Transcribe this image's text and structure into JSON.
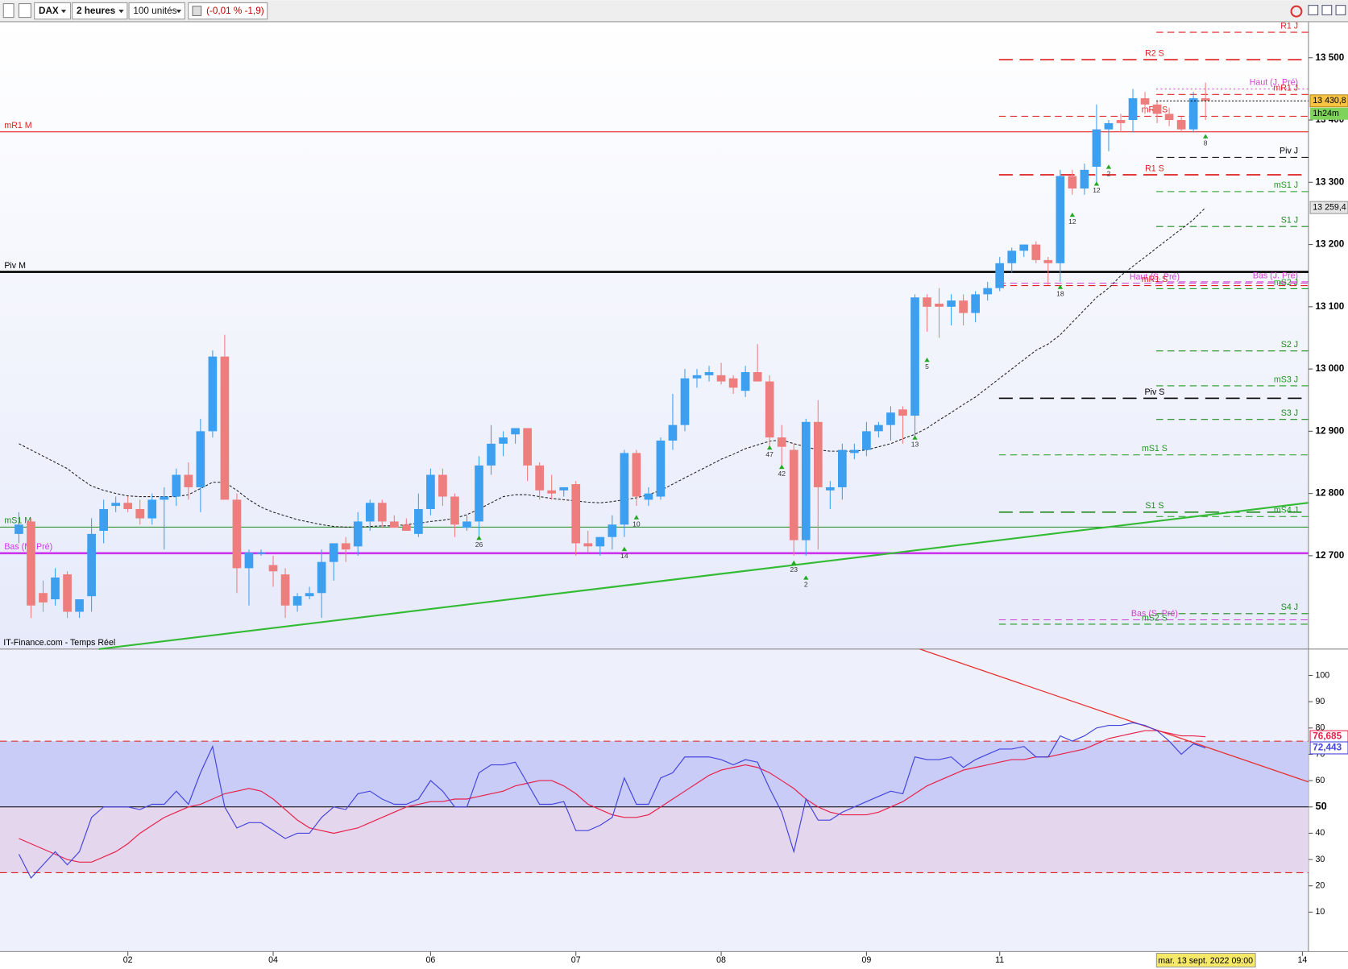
{
  "toolbar": {
    "symbol": "DAX",
    "interval": "2 heures",
    "units": "100 unités",
    "change": "(-0,01 % -1,9)"
  },
  "chart_data": [
    {
      "type": "candlestick",
      "source": "IT-Finance.com - Temps Réel",
      "xlim": [
        -1.56,
        106.5
      ],
      "xticks": [
        {
          "value": 9,
          "label": "02"
        },
        {
          "value": 21,
          "label": "04"
        },
        {
          "value": 34,
          "label": "06"
        },
        {
          "value": 46,
          "label": "07"
        },
        {
          "value": 58,
          "label": "08"
        },
        {
          "value": 70,
          "label": "09"
        },
        {
          "value": 81,
          "label": "11"
        },
        {
          "value": 106,
          "label": "14"
        }
      ],
      "cursor": {
        "value": 98,
        "label": "mar. 13 sept. 2022 09:00"
      },
      "ylim": [
        12550,
        13558
      ],
      "yticks": [
        {
          "value": 12700,
          "label": "12 700"
        },
        {
          "value": 12800,
          "label": "12 800"
        },
        {
          "value": 12900,
          "label": "12 900"
        },
        {
          "value": 13000,
          "label": "13 000"
        },
        {
          "value": 13100,
          "label": "13 100"
        },
        {
          "value": 13200,
          "label": "13 200"
        },
        {
          "value": 13300,
          "label": "13 300"
        },
        {
          "value": 13400,
          "label": "13 400"
        },
        {
          "value": 13500,
          "label": "13 500"
        }
      ],
      "up_color": "#3d9ff0",
      "down_color": "#ee7d7d",
      "open": [
        12735,
        12755,
        12640,
        12630,
        12670,
        12610,
        12635,
        12740,
        12780,
        12785,
        12775,
        12760,
        12790,
        12795,
        12830,
        12810,
        12900,
        13020,
        12790,
        12680,
        12705,
        12685,
        12670,
        12620,
        12635,
        12640,
        12690,
        12720,
        12715,
        12755,
        12785,
        12755,
        12750,
        12735,
        12775,
        12830,
        12795,
        12745,
        12755,
        12845,
        12880,
        12895,
        12905,
        12845,
        12805,
        12805,
        12815,
        12720,
        12715,
        12730,
        12750,
        12865,
        12790,
        12795,
        12885,
        12910,
        12985,
        12990,
        12990,
        12985,
        12965,
        12995,
        12980,
        12890,
        12870,
        12725,
        12915,
        12805,
        12810,
        12865,
        12870,
        12900,
        12910,
        12935,
        12925,
        13115,
        13105,
        13100,
        13110,
        13090,
        13120,
        13130,
        13170,
        13190,
        13200,
        13175,
        13170,
        13310,
        13290,
        13325,
        13385,
        13400,
        13400,
        13435,
        13425,
        13410,
        13400,
        13385,
        13435
      ],
      "high": [
        12770,
        12760,
        12660,
        12680,
        12675,
        12630,
        12760,
        12790,
        12795,
        12795,
        12790,
        12800,
        12810,
        12840,
        12850,
        12920,
        13030,
        13055,
        12800,
        12710,
        12710,
        12700,
        12680,
        12640,
        12650,
        12710,
        12720,
        12730,
        12770,
        12790,
        12790,
        12765,
        12760,
        12800,
        12840,
        12840,
        12800,
        12765,
        12860,
        12910,
        12900,
        12905,
        12905,
        12850,
        12830,
        12810,
        12820,
        12740,
        12730,
        12765,
        12870,
        12870,
        12810,
        12890,
        12960,
        13000,
        13000,
        13005,
        13010,
        12990,
        13005,
        13040,
        12990,
        12910,
        12880,
        12920,
        12950,
        12820,
        12880,
        12880,
        12915,
        12915,
        12940,
        12940,
        13120,
        13120,
        13130,
        13120,
        13120,
        13125,
        13140,
        13180,
        13195,
        13200,
        13205,
        13180,
        13320,
        13320,
        13330,
        13425,
        13400,
        13410,
        13450,
        13445,
        13430,
        13420,
        13405,
        13445,
        13460
      ],
      "low": [
        12720,
        12600,
        12610,
        12620,
        12600,
        12600,
        12610,
        12720,
        12770,
        12770,
        12750,
        12750,
        12710,
        12780,
        12790,
        12770,
        12890,
        12790,
        12640,
        12620,
        12700,
        12650,
        12600,
        12610,
        12630,
        12600,
        12660,
        12690,
        12700,
        12740,
        12745,
        12745,
        12740,
        12730,
        12765,
        12780,
        12730,
        12740,
        12730,
        12830,
        12860,
        12880,
        12820,
        12790,
        12790,
        12795,
        12700,
        12705,
        12700,
        12710,
        12730,
        12780,
        12780,
        12790,
        12870,
        12900,
        12970,
        12980,
        12975,
        12960,
        12955,
        12980,
        12870,
        12840,
        12700,
        12700,
        12710,
        12775,
        12790,
        12855,
        12860,
        12890,
        12885,
        12880,
        12890,
        13060,
        13050,
        13070,
        13070,
        13075,
        13110,
        13125,
        13155,
        13180,
        13170,
        13135,
        13140,
        13280,
        13280,
        13300,
        13350,
        13380,
        13380,
        13410,
        13395,
        13390,
        13380,
        13380,
        13400
      ],
      "close": [
        12750,
        12620,
        12625,
        12665,
        12610,
        12630,
        12735,
        12775,
        12785,
        12775,
        12760,
        12790,
        12795,
        12830,
        12810,
        12900,
        13020,
        12790,
        12680,
        12705,
        12705,
        12675,
        12620,
        12635,
        12640,
        12690,
        12720,
        12710,
        12755,
        12785,
        12755,
        12745,
        12740,
        12775,
        12830,
        12795,
        12750,
        12755,
        12845,
        12880,
        12890,
        12905,
        12845,
        12805,
        12800,
        12810,
        12720,
        12715,
        12730,
        12750,
        12865,
        12795,
        12800,
        12885,
        12910,
        12985,
        12990,
        12995,
        12980,
        12970,
        12995,
        12980,
        12890,
        12875,
        12725,
        12915,
        12810,
        12810,
        12870,
        12870,
        12900,
        12910,
        12930,
        12925,
        13115,
        13100,
        13100,
        13110,
        13090,
        13120,
        13130,
        13170,
        13190,
        13200,
        13175,
        13170,
        13310,
        13290,
        13320,
        13385,
        13395,
        13395,
        13435,
        13425,
        13410,
        13400,
        13385,
        13435,
        13430.8
      ],
      "last_label": "13 430,8",
      "countdown": "1h24m",
      "ma": {
        "color": "#222222",
        "last_label": "13 259,4",
        "values": [
          12880,
          12870,
          12860,
          12850,
          12840,
          12825,
          12812,
          12805,
          12800,
          12796,
          12795,
          12795,
          12795,
          12795,
          12798,
          12808,
          12818,
          12818,
          12805,
          12790,
          12778,
          12770,
          12764,
          12758,
          12754,
          12750,
          12747,
          12746,
          12746,
          12747,
          12748,
          12748,
          12750,
          12752,
          12755,
          12757,
          12760,
          12766,
          12775,
          12785,
          12795,
          12798,
          12798,
          12795,
          12792,
          12790,
          12788,
          12786,
          12785,
          12787,
          12790,
          12793,
          12798,
          12805,
          12815,
          12825,
          12835,
          12845,
          12855,
          12863,
          12872,
          12878,
          12884,
          12886,
          12880,
          12875,
          12870,
          12868,
          12868,
          12868,
          12870,
          12875,
          12880,
          12888,
          12895,
          12905,
          12918,
          12930,
          12943,
          12955,
          12970,
          12985,
          13000,
          13015,
          13030,
          13040,
          13055,
          13075,
          13095,
          13115,
          13130,
          13150,
          13165,
          13180,
          13195,
          13210,
          13225,
          13240,
          13259.4
        ]
      },
      "levels": [
        {
          "name": "R1 J",
          "value": 13541,
          "color": "#e02020",
          "style": "dashed"
        },
        {
          "name": "R2 S",
          "value": 13497,
          "color": "#e02020",
          "style": "longdash"
        },
        {
          "name": "Haut (J. Pré)",
          "value": 13450,
          "color": "#d040d0",
          "style": "dotted"
        },
        {
          "name": "mR1 J",
          "value": 13441,
          "color": "#e02020",
          "style": "dashed"
        },
        {
          "name": "mR2 S",
          "value": 13406,
          "color": "#e02020",
          "style": "dashed"
        },
        {
          "name": "mR1 M",
          "value": 13381,
          "color": "#e02020",
          "style": "solid"
        },
        {
          "name": "Piv J",
          "value": 13340,
          "color": "#000000",
          "style": "dashed"
        },
        {
          "name": "R1 S",
          "value": 13312,
          "color": "#e02020",
          "style": "longdash"
        },
        {
          "name": "mS1 J",
          "value": 13285,
          "color": "#1f9a1f",
          "style": "dashed"
        },
        {
          "name": "S1 J",
          "value": 13229,
          "color": "#1f8a1f",
          "style": "dashed"
        },
        {
          "name": "Piv M",
          "value": 13156,
          "color": "#000000",
          "style": "bold"
        },
        {
          "name": "Bas (J. Pré)",
          "value": 13140,
          "color": "#d040d0",
          "style": "dashed"
        },
        {
          "name": "Haut (S. Pré)",
          "value": 13138,
          "color": "#d040d0",
          "style": "dashed"
        },
        {
          "name": "mR1 S",
          "value": 13134,
          "color": "#e02020",
          "style": "dashed"
        },
        {
          "name": "mS2 J",
          "value": 13129,
          "color": "#1f9a1f",
          "style": "dashed"
        },
        {
          "name": "S2 J",
          "value": 13029,
          "color": "#1f8a1f",
          "style": "dashed"
        },
        {
          "name": "mS3 J",
          "value": 12973,
          "color": "#1f9a1f",
          "style": "dashed"
        },
        {
          "name": "Piv S",
          "value": 12953,
          "color": "#000000",
          "style": "longdash"
        },
        {
          "name": "S3 J",
          "value": 12919,
          "color": "#1f8a1f",
          "style": "dashed"
        },
        {
          "name": "mS1 S",
          "value": 12862,
          "color": "#1f9a1f",
          "style": "dashed"
        },
        {
          "name": "S1 S",
          "value": 12770,
          "color": "#1f8a1f",
          "style": "longdash"
        },
        {
          "name": "mS4 J",
          "value": 12763,
          "color": "#1f9a1f",
          "style": "dashed"
        },
        {
          "name": "mS1 M",
          "value": 12746,
          "color": "#1f8a1f",
          "style": "solid"
        },
        {
          "name": "Bas (M. Pré)",
          "value": 12704,
          "color": "#cc33ee",
          "style": "bold"
        },
        {
          "name": "S4 J",
          "value": 12607,
          "color": "#1f8a1f",
          "style": "dashed"
        },
        {
          "name": "Bas (S. Pré)",
          "value": 12597,
          "color": "#d040d0",
          "style": "dashed"
        },
        {
          "name": "mS2 S",
          "value": 12590,
          "color": "#1f9a1f",
          "style": "dashed"
        }
      ],
      "trendlines": [
        {
          "color": "#33bb33",
          "from": [
            6.6,
            12550
          ],
          "to": [
            106.5,
            12785
          ]
        }
      ],
      "signals": [
        {
          "x": 38,
          "price": 12720,
          "label": 26
        },
        {
          "x": 50,
          "price": 12702,
          "label": 14
        },
        {
          "x": 51,
          "price": 12753,
          "label": 10
        },
        {
          "x": 62,
          "price": 12865,
          "label": 47
        },
        {
          "x": 63,
          "price": 12834,
          "label": 42
        },
        {
          "x": 64,
          "price": 12680,
          "label": 23
        },
        {
          "x": 65,
          "price": 12656,
          "label": 2
        },
        {
          "x": 74,
          "price": 12881,
          "label": 13
        },
        {
          "x": 75,
          "price": 13006,
          "label": 5
        },
        {
          "x": 86,
          "price": 13123,
          "label": 18
        },
        {
          "x": 87,
          "price": 13239,
          "label": 12
        },
        {
          "x": 89,
          "price": 13289,
          "label": 12
        },
        {
          "x": 90,
          "price": 13316,
          "label": 2
        },
        {
          "x": 98,
          "price": 13365,
          "label": 8
        }
      ]
    },
    {
      "type": "line",
      "ylim": [
        -5,
        110
      ],
      "yticks": [
        10,
        20,
        30,
        40,
        50,
        60,
        70,
        80,
        90,
        100
      ],
      "zones": [
        {
          "from": 50,
          "to": 75,
          "color": "#c8ccf6"
        },
        {
          "from": 25,
          "to": 50,
          "color": "#e4d6ec"
        }
      ],
      "reference_lines": [
        {
          "value": 75,
          "color": "#e02020",
          "style": "dashed"
        },
        {
          "value": 50,
          "color": "#000000",
          "style": "solid"
        },
        {
          "value": 25,
          "color": "#e02020",
          "style": "dashed"
        }
      ],
      "series": [
        {
          "color": "#4444dd",
          "last_label": "72,443",
          "values": [
            32,
            23,
            28,
            33,
            28,
            33,
            46,
            50,
            50,
            50,
            49,
            51,
            51,
            56,
            51,
            63,
            73,
            50,
            42,
            44,
            44,
            41,
            38,
            40,
            40,
            46,
            50,
            49,
            55,
            56,
            53,
            51,
            51,
            53,
            60,
            56,
            50,
            50,
            63,
            66,
            66,
            67,
            59,
            51,
            51,
            52,
            41,
            41,
            43,
            46,
            61,
            51,
            51,
            61,
            63,
            69,
            69,
            69,
            68,
            66,
            68,
            67,
            57,
            48,
            33,
            53,
            45,
            45,
            48,
            50,
            52,
            54,
            56,
            55,
            69,
            68,
            68,
            69,
            65,
            68,
            70,
            72,
            72,
            73,
            69,
            69,
            77,
            75,
            77,
            80,
            81,
            81,
            82,
            81,
            79,
            75,
            70,
            74,
            72.443
          ]
        },
        {
          "color": "#e8204a",
          "last_label": "76,685",
          "values": [
            38,
            36,
            34,
            32,
            30,
            29,
            29,
            31,
            33,
            36,
            40,
            43,
            46,
            48,
            50,
            51,
            53,
            55,
            56,
            57,
            56,
            53,
            49,
            45,
            42,
            41,
            40,
            41,
            42,
            44,
            46,
            48,
            50,
            51,
            52,
            52,
            53,
            53,
            54,
            55,
            56,
            58,
            59,
            60,
            60,
            58,
            55,
            51,
            49,
            47,
            46,
            46,
            47,
            50,
            53,
            56,
            59,
            62,
            64,
            65,
            66,
            65,
            63,
            60,
            57,
            53,
            50,
            48,
            47,
            47,
            47,
            48,
            50,
            52,
            55,
            58,
            60,
            62,
            64,
            65,
            66,
            67,
            68,
            68,
            69,
            69,
            70,
            71,
            72,
            74,
            76,
            77,
            78,
            79,
            79,
            78,
            77,
            77,
            76.685
          ]
        }
      ],
      "trendlines": [
        {
          "color": "#e83030",
          "from": [
            74.4,
            110
          ],
          "to": [
            106.5,
            59.5
          ]
        }
      ]
    }
  ]
}
